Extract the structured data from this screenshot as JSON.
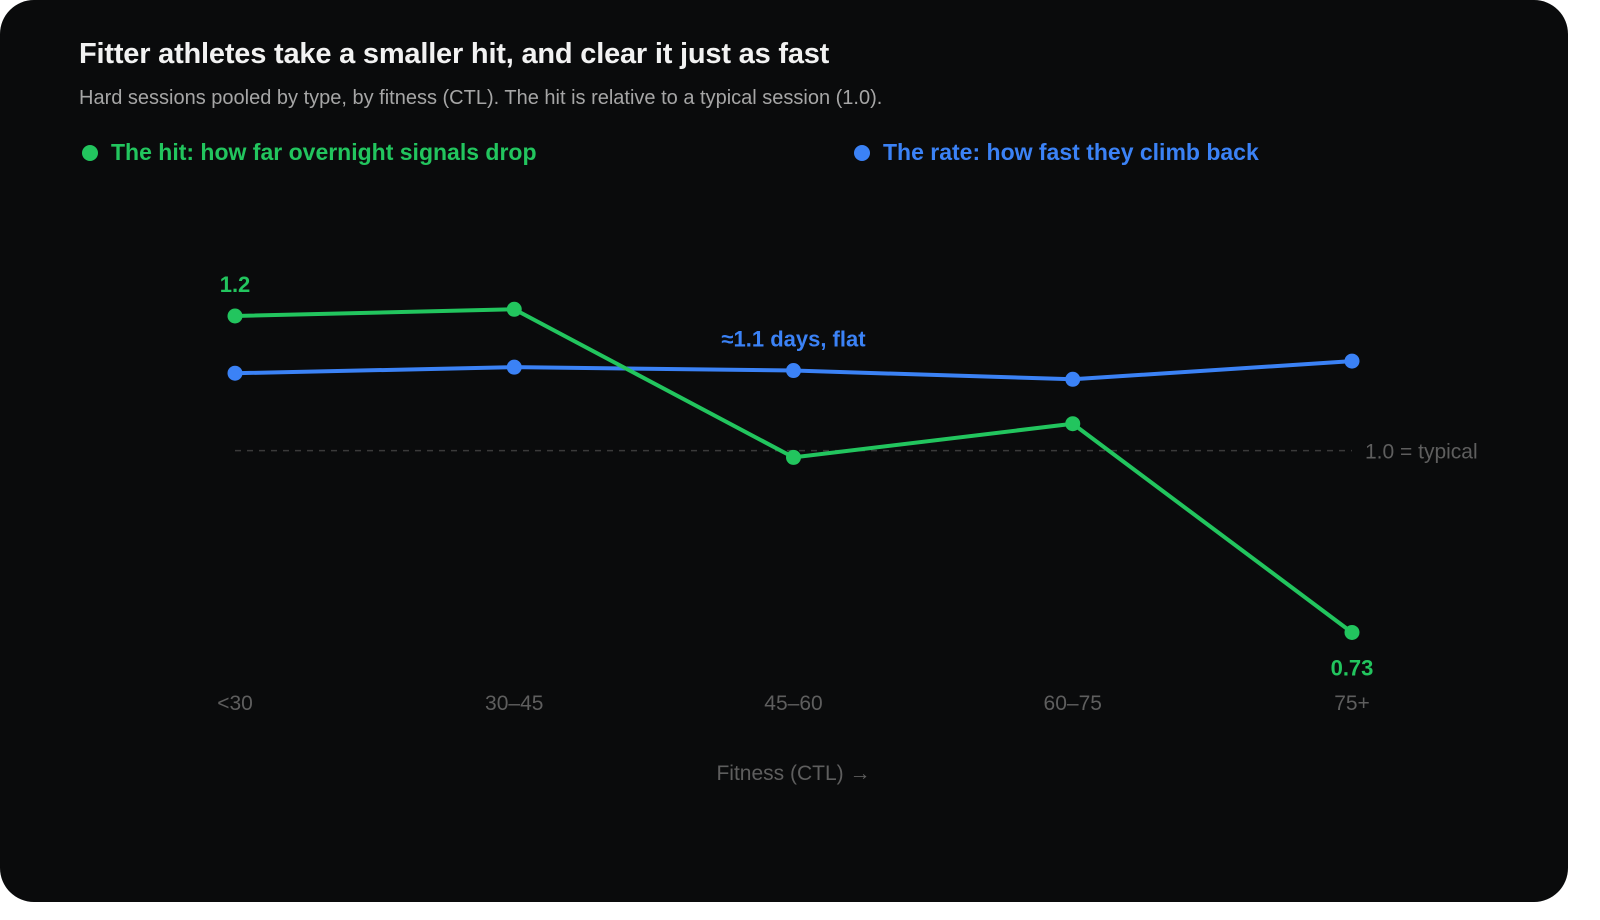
{
  "title": "Fitter athletes take a smaller hit, and clear it just as fast",
  "subtitle": "Hard sessions pooled by type, by fitness (CTL). The hit is relative to a typical session (1.0).",
  "legend": {
    "hit": "The hit: how far overnight signals drop",
    "rate": "The rate: how fast they climb back"
  },
  "colors": {
    "hit": "#22c55e",
    "rate": "#3b82f6",
    "background": "#0a0b0c",
    "axis_text": "#5e5e5e",
    "reference": "#3a3a3a"
  },
  "chart_data": {
    "type": "line",
    "categories": [
      "<30",
      "30–45",
      "45–60",
      "60–75",
      "75+"
    ],
    "xlabel": "Fitness (CTL) →",
    "ylabel": "",
    "ylim": [
      0.6,
      1.35
    ],
    "grid": false,
    "legend_placement": "top",
    "reference_line": {
      "value": 1.0,
      "label": "1.0 = typical"
    },
    "series": [
      {
        "key": "hit",
        "name": "The hit: how far overnight signals drop",
        "values": [
          1.2,
          1.21,
          0.99,
          1.04,
          0.73
        ]
      },
      {
        "key": "rate",
        "name": "The rate: how fast they climb back",
        "values": [
          1.115,
          1.124,
          1.119,
          1.106,
          1.133
        ]
      }
    ],
    "annotations": [
      {
        "series": "hit",
        "index": 0,
        "text": "1.2",
        "position": "above"
      },
      {
        "series": "hit",
        "index": 4,
        "text": "0.73",
        "position": "below"
      },
      {
        "series": "rate",
        "index": 2,
        "text": "≈1.1 days, flat",
        "position": "above"
      }
    ]
  }
}
